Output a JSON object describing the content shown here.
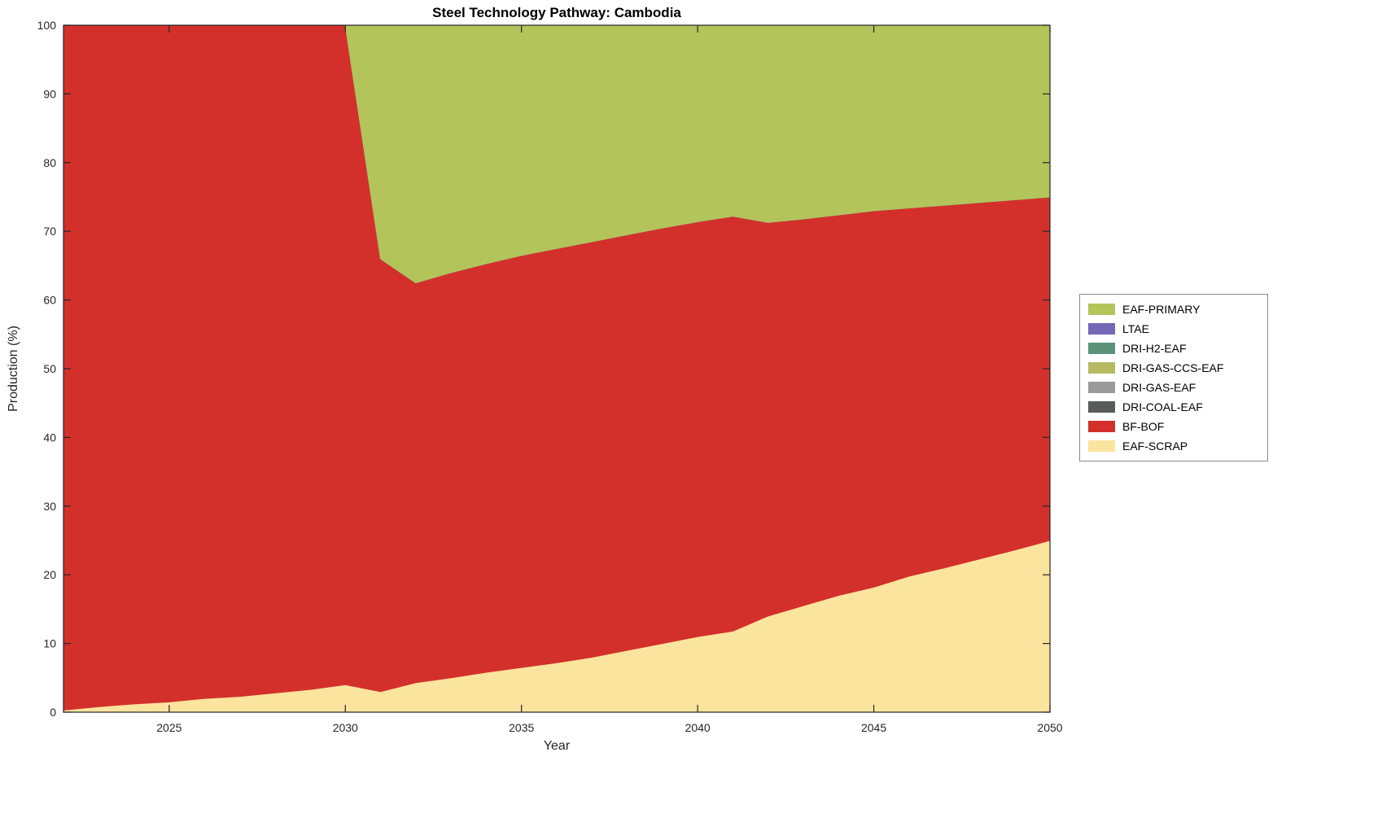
{
  "chart_data": {
    "type": "area",
    "stacked": true,
    "title": "Steel Technology Pathway: Cambodia",
    "xlabel": "Year",
    "ylabel": "Production (%)",
    "xlim": [
      2022,
      2050
    ],
    "ylim": [
      0,
      100
    ],
    "xticks": [
      2025,
      2030,
      2035,
      2040,
      2045,
      2050
    ],
    "yticks": [
      0,
      10,
      20,
      30,
      40,
      50,
      60,
      70,
      80,
      90,
      100
    ],
    "grid": false,
    "x": [
      2022,
      2023,
      2024,
      2025,
      2026,
      2027,
      2028,
      2029,
      2030,
      2031,
      2032,
      2033,
      2034,
      2035,
      2036,
      2037,
      2038,
      2039,
      2040,
      2041,
      2042,
      2043,
      2044,
      2045,
      2046,
      2047,
      2048,
      2049,
      2050
    ],
    "series": [
      {
        "name": "EAF-SCRAP",
        "color": "#fbe49d",
        "values": [
          0.3,
          0.8,
          1.2,
          1.5,
          2.0,
          2.3,
          2.8,
          3.3,
          4.0,
          3.0,
          4.3,
          5.0,
          5.8,
          6.5,
          7.2,
          8.0,
          9.0,
          10.0,
          11.0,
          11.8,
          14.0,
          15.5,
          17.0,
          18.2,
          19.8,
          21.0,
          22.3,
          23.6,
          25.0
        ]
      },
      {
        "name": "BF-BOF",
        "color": "#d3302c",
        "values": [
          99.7,
          99.2,
          98.8,
          98.5,
          98.0,
          97.7,
          97.2,
          96.7,
          96.0,
          63.0,
          58.2,
          59.0,
          59.5,
          60.0,
          60.3,
          60.5,
          60.5,
          60.5,
          60.4,
          60.4,
          57.3,
          56.3,
          55.4,
          54.8,
          53.6,
          52.8,
          51.9,
          51.0,
          50.0
        ]
      },
      {
        "name": "DRI-COAL-EAF",
        "color": "#595a5c",
        "values": [
          0,
          0,
          0,
          0,
          0,
          0,
          0,
          0,
          0,
          0,
          0,
          0,
          0,
          0,
          0,
          0,
          0,
          0,
          0,
          0,
          0,
          0,
          0,
          0,
          0,
          0,
          0,
          0,
          0
        ]
      },
      {
        "name": "DRI-GAS-EAF",
        "color": "#9a9a9a",
        "values": [
          0,
          0,
          0,
          0,
          0,
          0,
          0,
          0,
          0,
          0,
          0,
          0,
          0,
          0,
          0,
          0,
          0,
          0,
          0,
          0,
          0,
          0,
          0,
          0,
          0,
          0,
          0,
          0,
          0
        ]
      },
      {
        "name": "DRI-GAS-CCS-EAF",
        "color": "#b5ba63",
        "values": [
          0,
          0,
          0,
          0,
          0,
          0,
          0,
          0,
          0,
          0,
          0,
          0,
          0,
          0,
          0,
          0,
          0,
          0,
          0,
          0,
          0,
          0,
          0,
          0,
          0,
          0,
          0,
          0,
          0
        ]
      },
      {
        "name": "DRI-H2-EAF",
        "color": "#5c9279",
        "values": [
          0,
          0,
          0,
          0,
          0,
          0,
          0,
          0,
          0,
          0,
          0,
          0,
          0,
          0,
          0,
          0,
          0,
          0,
          0,
          0,
          0,
          0,
          0,
          0,
          0,
          0,
          0,
          0,
          0
        ]
      },
      {
        "name": "LTAE",
        "color": "#7467b6",
        "values": [
          0,
          0,
          0,
          0,
          0,
          0,
          0,
          0,
          0,
          0,
          0,
          0,
          0,
          0,
          0,
          0,
          0,
          0,
          0,
          0,
          0,
          0,
          0,
          0,
          0,
          0,
          0,
          0,
          0
        ]
      },
      {
        "name": "EAF-PRIMARY",
        "color": "#b2c45a",
        "values": [
          0,
          0,
          0,
          0,
          0,
          0,
          0,
          0,
          0,
          34.0,
          37.5,
          36.0,
          34.7,
          33.5,
          32.5,
          31.5,
          30.5,
          29.5,
          28.6,
          27.8,
          28.7,
          28.2,
          27.6,
          27.0,
          26.6,
          26.2,
          25.8,
          25.4,
          25.0
        ]
      }
    ],
    "legend": {
      "position": "right-outside",
      "labels_top_to_bottom": [
        "EAF-PRIMARY",
        "LTAE",
        "DRI-H2-EAF",
        "DRI-GAS-CCS-EAF",
        "DRI-GAS-EAF",
        "DRI-COAL-EAF",
        "BF-BOF",
        "EAF-SCRAP"
      ]
    },
    "axis_color": "#262626",
    "plot_background": "#ffffff"
  }
}
